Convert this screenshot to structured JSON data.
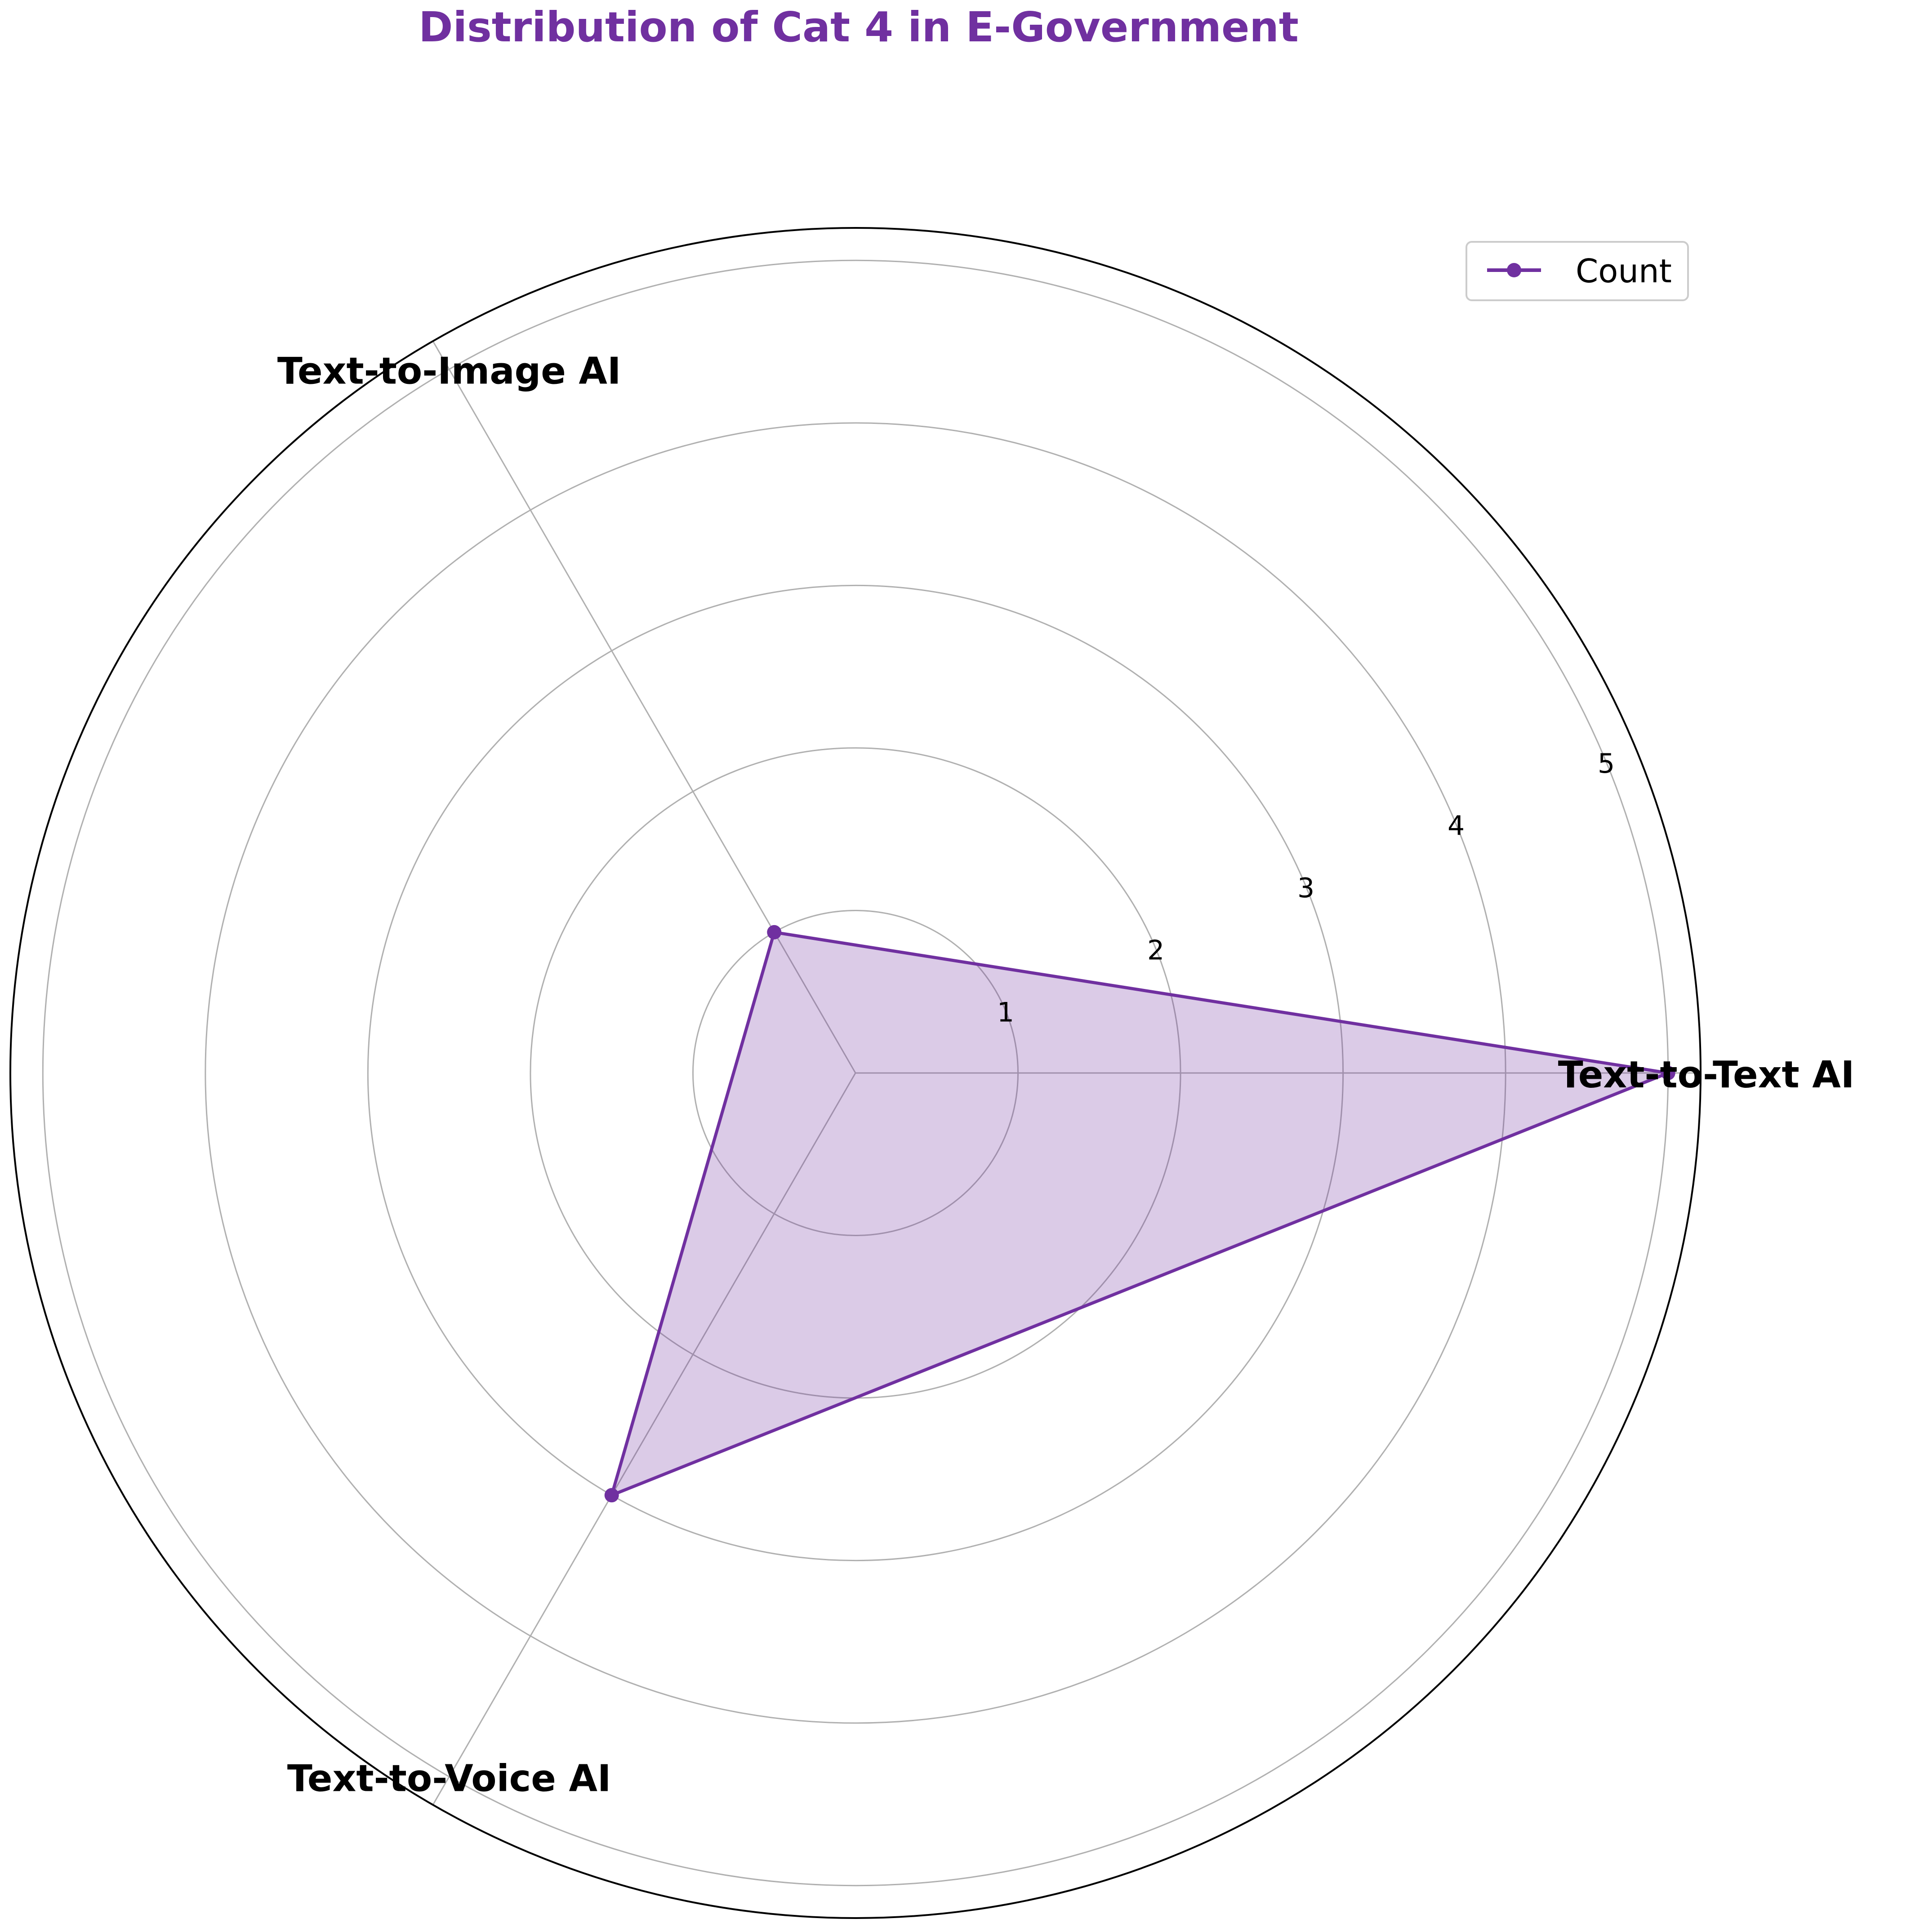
{
  "chart_data": {
    "type": "radar",
    "title": "Distribution of Cat 4 in E-Government",
    "categories": [
      "Text-to-Text AI",
      "Text-to-Image AI",
      "Text-to-Voice AI"
    ],
    "series": [
      {
        "name": "Count",
        "values": [
          5,
          1,
          3
        ]
      }
    ],
    "r_ticks": [
      1,
      2,
      3,
      4,
      5
    ],
    "r_range": [
      0,
      5.2
    ],
    "grid": true,
    "legend_position": "top-right",
    "colors": {
      "title": "#7030a0",
      "series": "#7030a0",
      "fill": "#7030a0",
      "grid": "#b0b0b0",
      "frame": "#000000",
      "text": "#000000"
    }
  }
}
